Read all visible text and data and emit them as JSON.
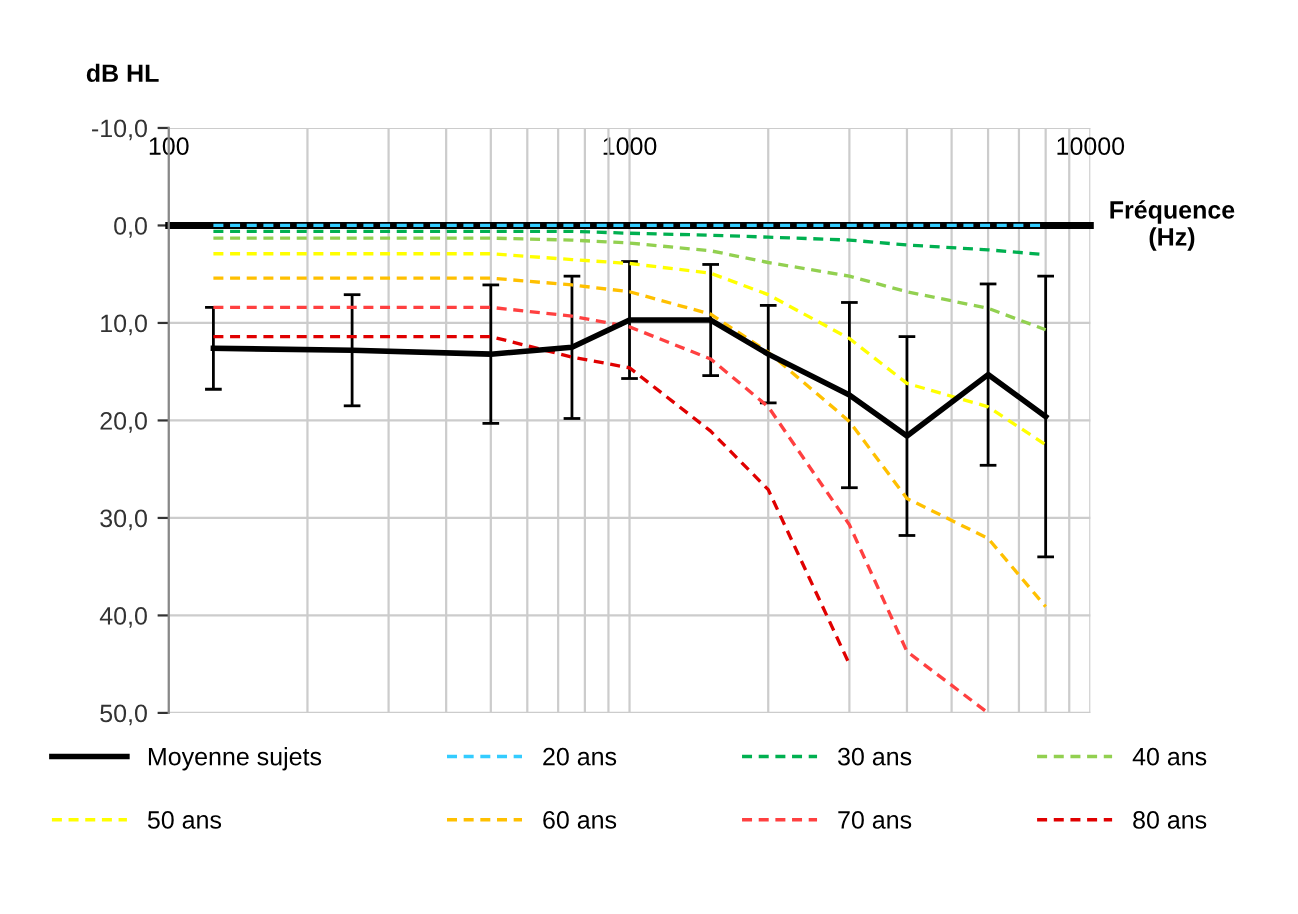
{
  "chart_data": {
    "type": "line",
    "ylabel": "dB HL",
    "xlabel": "Fréquence\n(Hz)",
    "log": "x",
    "x": [
      125,
      250,
      500,
      750,
      1000,
      1500,
      2000,
      3000,
      4000,
      6000,
      8000
    ],
    "xlim": [
      100,
      10000
    ],
    "xticks": [
      100,
      1000,
      10000
    ],
    "ylim": [
      50,
      -10
    ],
    "yticks": [
      {
        "value": -10,
        "label": "-10,0"
      },
      {
        "value": 0,
        "label": "0,0"
      },
      {
        "value": 10,
        "label": "10,0"
      },
      {
        "value": 20,
        "label": "20,0"
      },
      {
        "value": 30,
        "label": "30,0"
      },
      {
        "value": 40,
        "label": "40,0"
      },
      {
        "value": 50,
        "label": "50,0"
      }
    ],
    "grid": true,
    "legend": "bottom",
    "marker": "none",
    "series": [
      {
        "name": "Moyenne sujets",
        "color": "#000000",
        "line_style": "solid",
        "values": [
          12.6,
          12.8,
          13.2,
          12.5,
          9.7,
          9.7,
          13.2,
          17.4,
          21.6,
          15.3,
          19.6
        ],
        "errors": [
          4.2,
          5.7,
          7.1,
          7.3,
          6.0,
          5.7,
          5.0,
          9.5,
          10.2,
          9.3,
          14.4
        ]
      },
      {
        "name": "20 ans",
        "color": "#33ccff",
        "line_style": "dashed",
        "values": [
          0,
          0,
          0,
          0,
          0,
          0,
          0,
          0,
          0,
          0,
          0
        ]
      },
      {
        "name": "30 ans",
        "color": "#00b050",
        "line_style": "dashed",
        "values": [
          0.6,
          0.6,
          0.6,
          0.6,
          0.8,
          1,
          1.2,
          1.5,
          2,
          2.5,
          3
        ]
      },
      {
        "name": "40 ans",
        "color": "#92d050",
        "line_style": "dashed",
        "values": [
          1.3,
          1.3,
          1.3,
          1.5,
          1.8,
          2.6,
          3.8,
          5.2,
          6.8,
          8.5,
          10.7
        ]
      },
      {
        "name": "50 ans",
        "color": "#ffff00",
        "line_style": "dashed",
        "values": [
          2.9,
          2.9,
          2.9,
          3.5,
          3.9,
          4.9,
          7.1,
          11.6,
          16.2,
          18.6,
          22.5
        ]
      },
      {
        "name": "60 ans",
        "color": "#ffc000",
        "line_style": "dashed",
        "values": [
          5.4,
          5.4,
          5.4,
          6.1,
          6.8,
          9.1,
          13.0,
          20.1,
          28.0,
          32.1,
          39.1
        ]
      },
      {
        "name": "70 ans",
        "color": "#ff4040",
        "line_style": "dashed",
        "values": [
          8.4,
          8.4,
          8.4,
          9.3,
          10.4,
          13.7,
          18.6,
          30.7,
          43.7,
          50,
          null
        ]
      },
      {
        "name": "80 ans",
        "color": "#e00000",
        "line_style": "dashed",
        "values": [
          11.4,
          11.4,
          11.4,
          13.5,
          14.6,
          21.1,
          27.1,
          45,
          null,
          null,
          null
        ]
      }
    ]
  }
}
